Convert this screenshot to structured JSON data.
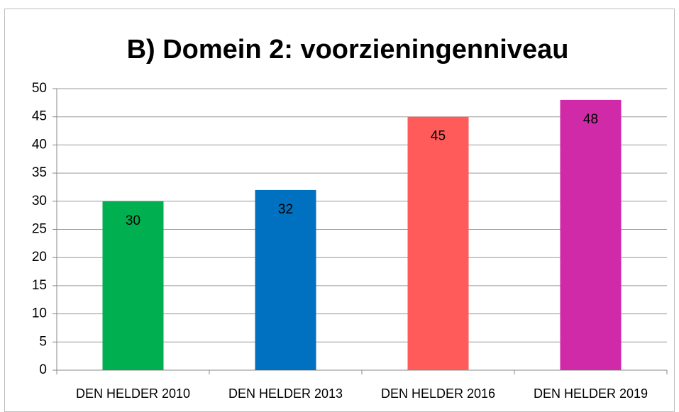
{
  "chart_data": {
    "type": "bar",
    "title": "B) Domein 2: voorzieningenniveau",
    "categories": [
      "DEN HELDER 2010",
      "DEN HELDER 2013",
      "DEN HELDER 2016",
      "DEN HELDER 2019"
    ],
    "values": [
      30,
      32,
      45,
      48
    ],
    "colors": [
      "#00b050",
      "#0070c0",
      "#ff5b5b",
      "#d02aa8"
    ],
    "ylim": [
      0,
      50
    ],
    "yticks": [
      0,
      5,
      10,
      15,
      20,
      25,
      30,
      35,
      40,
      45,
      50
    ],
    "grid": true
  }
}
